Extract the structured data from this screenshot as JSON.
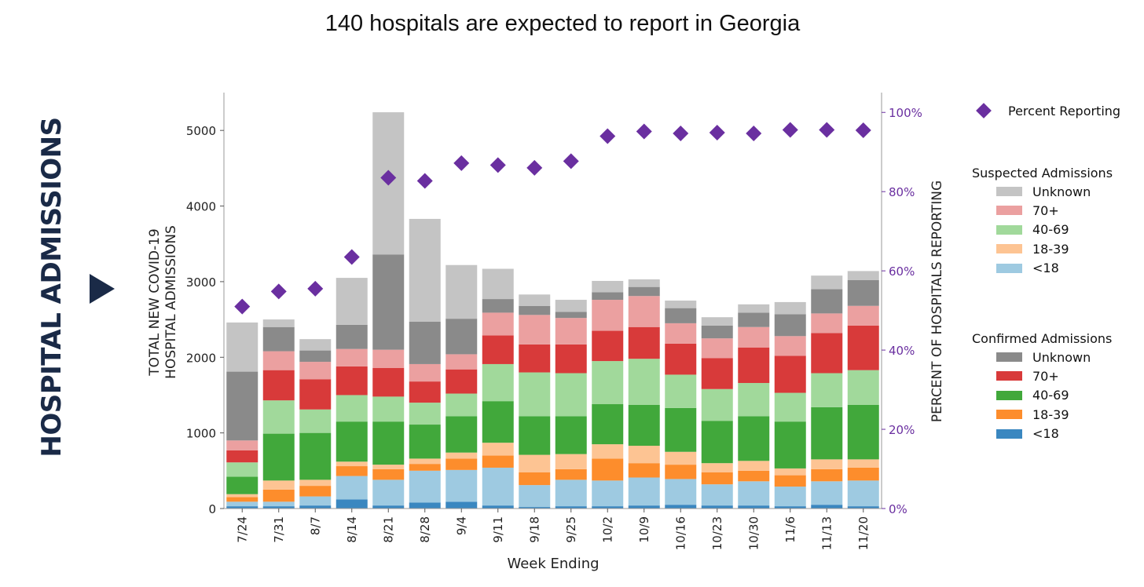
{
  "title": "140 hospitals are expected to report in Georgia",
  "side_label": "HOSPITAL ADMISSIONS",
  "legend": {
    "percent_label": "Percent Reporting",
    "suspected_heading": "Suspected Admissions",
    "confirmed_heading": "Confirmed Admissions",
    "suspected_items": [
      {
        "label": "Unknown",
        "color": "#c4c4c4"
      },
      {
        "label": "70+",
        "color": "#eba0a0"
      },
      {
        "label": "40-69",
        "color": "#a1d99b"
      },
      {
        "label": "18-39",
        "color": "#fdc493"
      },
      {
        "label": "<18",
        "color": "#9ecae1"
      }
    ],
    "confirmed_items": [
      {
        "label": "Unknown",
        "color": "#8a8a8a"
      },
      {
        "label": "70+",
        "color": "#d83a3a"
      },
      {
        "label": "40-69",
        "color": "#41a83b"
      },
      {
        "label": "18-39",
        "color": "#fd8d2c"
      },
      {
        "label": "<18",
        "color": "#3a87c0"
      }
    ]
  },
  "chart_data": {
    "type": "bar",
    "stacked": true,
    "xlabel": "Week Ending",
    "ylabel_lines": [
      "TOTAL NEW COVID-19",
      "HOSPITAL ADMISSIONS"
    ],
    "y2label": "PERCENT OF HOSPITALS REPORTING",
    "ylim": [
      0,
      5500
    ],
    "y_ticks": [
      0,
      1000,
      2000,
      3000,
      4000,
      5000
    ],
    "y2lim": [
      0,
      1.05
    ],
    "y2_ticks": [
      0,
      0.2,
      0.4,
      0.6,
      0.8,
      1.0
    ],
    "y2_tick_labels": [
      "0%",
      "20%",
      "40%",
      "60%",
      "80%",
      "100%"
    ],
    "categories": [
      "7/24",
      "7/31",
      "8/7",
      "8/14",
      "8/21",
      "8/28",
      "9/4",
      "9/11",
      "9/18",
      "9/25",
      "10/2",
      "10/9",
      "10/16",
      "10/23",
      "10/30",
      "11/6",
      "11/13",
      "11/20"
    ],
    "stack_order": [
      "Confirmed <18",
      "Suspected <18",
      "Confirmed 18-39",
      "Suspected 18-39",
      "Confirmed 40-69",
      "Suspected 40-69",
      "Confirmed 70+",
      "Suspected 70+",
      "Confirmed Unknown",
      "Suspected Unknown"
    ],
    "series": [
      {
        "name": "Confirmed <18",
        "color": "#3a87c0",
        "values": [
          30,
          30,
          40,
          120,
          40,
          80,
          90,
          40,
          20,
          30,
          30,
          40,
          50,
          40,
          40,
          30,
          50,
          30
        ]
      },
      {
        "name": "Suspected <18",
        "color": "#9ecae1",
        "values": [
          60,
          60,
          120,
          310,
          340,
          420,
          420,
          500,
          290,
          350,
          340,
          370,
          340,
          280,
          320,
          260,
          310,
          340
        ]
      },
      {
        "name": "Confirmed 18-39",
        "color": "#fd8d2c",
        "values": [
          60,
          160,
          140,
          130,
          140,
          90,
          150,
          160,
          170,
          140,
          290,
          190,
          190,
          160,
          140,
          150,
          160,
          170
        ]
      },
      {
        "name": "Suspected 18-39",
        "color": "#fdc493",
        "values": [
          40,
          120,
          80,
          60,
          60,
          70,
          80,
          170,
          230,
          200,
          190,
          230,
          170,
          120,
          130,
          90,
          130,
          110
        ]
      },
      {
        "name": "Confirmed 40-69",
        "color": "#41a83b",
        "values": [
          230,
          620,
          620,
          530,
          570,
          450,
          480,
          550,
          510,
          500,
          530,
          540,
          580,
          560,
          590,
          620,
          690,
          720
        ]
      },
      {
        "name": "Suspected 40-69",
        "color": "#a1d99b",
        "values": [
          190,
          440,
          310,
          350,
          330,
          290,
          300,
          490,
          580,
          570,
          570,
          610,
          440,
          420,
          440,
          380,
          450,
          460
        ]
      },
      {
        "name": "Confirmed 70+",
        "color": "#d83a3a",
        "values": [
          160,
          400,
          400,
          380,
          380,
          280,
          320,
          380,
          370,
          380,
          400,
          420,
          410,
          410,
          470,
          490,
          530,
          590
        ]
      },
      {
        "name": "Suspected 70+",
        "color": "#eba0a0",
        "values": [
          130,
          250,
          230,
          230,
          240,
          230,
          200,
          300,
          390,
          350,
          410,
          410,
          270,
          260,
          270,
          260,
          260,
          260
        ]
      },
      {
        "name": "Confirmed Unknown",
        "color": "#8a8a8a",
        "values": [
          910,
          320,
          150,
          320,
          1260,
          560,
          470,
          180,
          120,
          80,
          100,
          120,
          200,
          170,
          190,
          290,
          320,
          340
        ]
      },
      {
        "name": "Suspected Unknown",
        "color": "#c4c4c4",
        "values": [
          650,
          100,
          150,
          620,
          1880,
          1360,
          710,
          400,
          150,
          160,
          150,
          100,
          100,
          110,
          110,
          160,
          180,
          120
        ]
      }
    ],
    "percent_reporting": {
      "name": "Percent Reporting",
      "color": "#6a2fa0",
      "values": [
        0.51,
        0.548,
        0.555,
        0.635,
        0.835,
        0.827,
        0.872,
        0.867,
        0.86,
        0.877,
        0.94,
        0.952,
        0.947,
        0.949,
        0.947,
        0.956,
        0.956,
        0.955
      ]
    }
  }
}
